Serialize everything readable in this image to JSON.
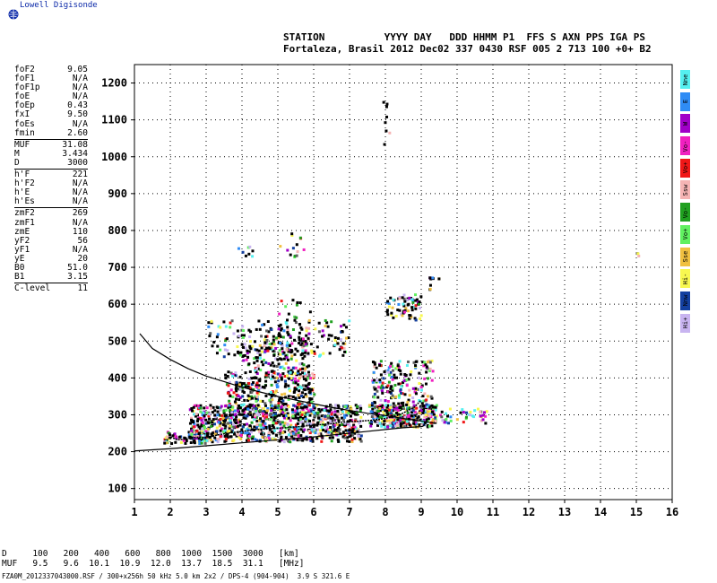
{
  "brand": {
    "name": "Lowell Digisonde"
  },
  "header": {
    "line1": "STATION          YYYY DAY   DDD HHMM P1  FFS S AXN PPS IGA PS",
    "line2": "Fortaleza, Brasil 2012 Dec02 337 0430 RSF 005 2 713 100 +0+ B2"
  },
  "params": {
    "group1": [
      {
        "name": "foF2",
        "value": "9.05"
      },
      {
        "name": "foF1",
        "value": "N/A"
      },
      {
        "name": "foF1p",
        "value": "N/A"
      },
      {
        "name": "foE",
        "value": "N/A"
      },
      {
        "name": "foEp",
        "value": "0.43"
      },
      {
        "name": "fxI",
        "value": "9.50"
      },
      {
        "name": "foEs",
        "value": "N/A"
      },
      {
        "name": "fmin",
        "value": "2.60"
      }
    ],
    "group2": [
      {
        "name": "MUF",
        "value": "31.08"
      },
      {
        "name": "M",
        "value": "3.434"
      },
      {
        "name": "D",
        "value": "3000"
      }
    ],
    "group3": [
      {
        "name": "h'F",
        "value": "221"
      },
      {
        "name": "h'F2",
        "value": "N/A"
      },
      {
        "name": "h'E",
        "value": "N/A"
      },
      {
        "name": "h'Es",
        "value": "N/A"
      }
    ],
    "group4": [
      {
        "name": "zmF2",
        "value": "269"
      },
      {
        "name": "zmF1",
        "value": "N/A"
      },
      {
        "name": "zmE",
        "value": "110"
      },
      {
        "name": "yF2",
        "value": "56"
      },
      {
        "name": "yF1",
        "value": "N/A"
      },
      {
        "name": "yE",
        "value": "20"
      },
      {
        "name": "B0",
        "value": "51.0"
      },
      {
        "name": "B1",
        "value": "3.15"
      }
    ],
    "group5": [
      {
        "name": "C-level",
        "value": "11"
      }
    ]
  },
  "legend": [
    {
      "label": "Nne",
      "color": "#55f0f0"
    },
    {
      "label": "E",
      "color": "#2f8cf5"
    },
    {
      "label": "W",
      "color": "#a000c8"
    },
    {
      "label": "Vo-",
      "color": "#f020c0"
    },
    {
      "label": "Vo+",
      "color": "#f01818"
    },
    {
      "label": "Ssw",
      "color": "#f5b4b4"
    },
    {
      "label": "Vo-",
      "color": "#20a020"
    },
    {
      "label": "Vo+",
      "color": "#60f060"
    },
    {
      "label": "Sse",
      "color": "#f0c040"
    },
    {
      "label": "Hi-",
      "color": "#f8f850"
    },
    {
      "label": "Nnw",
      "color": "#1440a0"
    },
    {
      "label": "Hi+",
      "color": "#c8b4f0"
    }
  ],
  "muf_table": {
    "row1": "D     100   200   400   600   800  1000  1500  3000   [km]",
    "row2": "MUF   9.5   9.6  10.1  10.9  12.0  13.7  18.5  31.1   [MHz]"
  },
  "footer": "FZA0M_2012337043000.RSF / 300+x256h 50 kHz 5.0 km 2x2 / DPS-4 (904-904)  3.9 S 321.6 E",
  "chart_data": {
    "type": "scatter",
    "title": "",
    "xlabel": "",
    "ylabel": "",
    "xlim": [
      1,
      16
    ],
    "ylim": [
      70,
      1250
    ],
    "x_ticks": [
      1,
      2,
      3,
      4,
      5,
      6,
      7,
      8,
      9,
      10,
      11,
      12,
      13,
      14,
      15,
      16
    ],
    "y_ticks": [
      100,
      200,
      300,
      400,
      500,
      600,
      700,
      800,
      900,
      1000,
      1100,
      1200
    ],
    "grid": true,
    "series": [
      {
        "label": "virtual-height-trace",
        "color": "#000000",
        "x": [
          1.9,
          2.0,
          2.2,
          2.5,
          2.8,
          3.0,
          3.3,
          3.6,
          4.0,
          4.4,
          4.8,
          5.2,
          5.6,
          6.0,
          6.4,
          6.8,
          7.2,
          7.6,
          8.0,
          8.4,
          8.8,
          9.0
        ],
        "y": [
          230,
          240,
          232,
          235,
          240,
          238,
          245,
          250,
          255,
          260,
          262,
          265,
          268,
          272,
          275,
          280,
          282,
          285,
          290,
          300,
          320,
          340
        ]
      },
      {
        "label": "true-height-profile",
        "color": "#000000",
        "x": [
          1.0,
          1.5,
          2.0,
          2.5,
          3.0,
          3.5,
          4.0,
          4.5,
          5.0,
          5.5,
          6.0,
          6.5,
          7.0,
          7.5,
          8.0,
          8.5,
          9.0,
          9.05
        ],
        "y": [
          202,
          205,
          208,
          212,
          216,
          220,
          224,
          228,
          232,
          236,
          240,
          245,
          250,
          255,
          260,
          265,
          268,
          269
        ]
      },
      {
        "label": "model-profile",
        "color": "#000000",
        "x": [
          1.15,
          1.5,
          2.0,
          2.5,
          3.0,
          3.5,
          4.0,
          4.5,
          5.0,
          5.5,
          6.0,
          6.5,
          7.0,
          7.5,
          8.0,
          8.5,
          9.0,
          9.4
        ],
        "y": [
          520,
          480,
          450,
          425,
          405,
          390,
          375,
          362,
          350,
          340,
          330,
          320,
          312,
          304,
          298,
          290,
          283,
          277
        ]
      }
    ]
  }
}
